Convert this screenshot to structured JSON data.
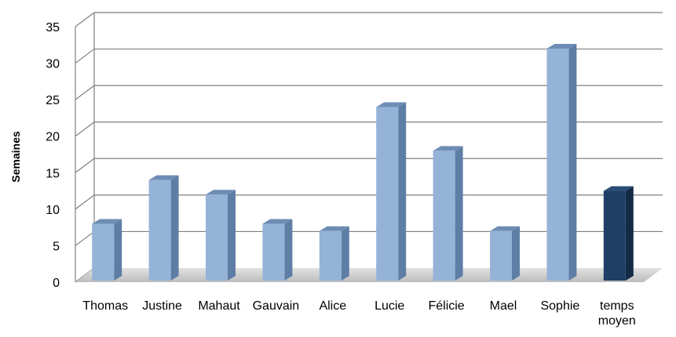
{
  "chart_data": {
    "type": "bar",
    "categories": [
      "Thomas",
      "Justine",
      "Mahaut",
      "Gauvain",
      "Alice",
      "Lucie",
      "Félicie",
      "Mael",
      "Sophie",
      [
        "temps",
        "moyen"
      ]
    ],
    "values": [
      8,
      14,
      12,
      8,
      7,
      24,
      18,
      7,
      32,
      12.5
    ],
    "highlight_index": 9,
    "title": "",
    "xlabel": "",
    "ylabel": "Semaines",
    "ylim": [
      0,
      35
    ],
    "yticks": [
      0,
      5,
      10,
      15,
      20,
      25,
      30,
      35
    ],
    "grid": true,
    "legend": "none",
    "style": "3d-column",
    "colors": {
      "bar_front": "#95B3D7",
      "bar_side": "#5F7EA5",
      "bar_top": "#6E8DB5",
      "highlight_front": "#1F3F66",
      "highlight_side": "#142A45",
      "highlight_top": "#2A4D78",
      "grid": "#7F7F7F",
      "floor": "#D0D0D0"
    }
  }
}
